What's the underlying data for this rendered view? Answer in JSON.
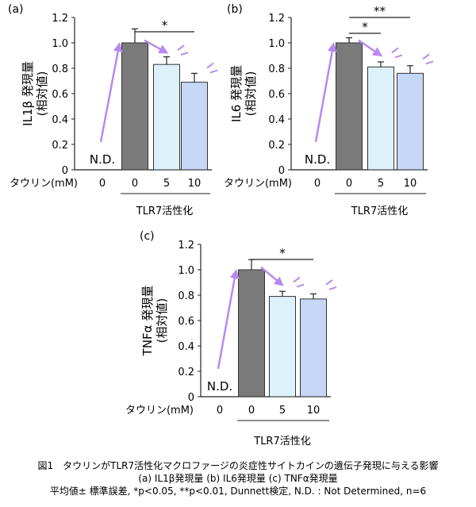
{
  "chart_data": [
    {
      "type": "bar",
      "panel_label": "(a)",
      "ylabel_line1": "IL1β 発現量",
      "ylabel_line2": "(相対値)",
      "categories": [
        "0",
        "0",
        "5",
        "10"
      ],
      "x_label": "タウリン(mM)",
      "group_label": "TLR7活性化",
      "values": [
        null,
        1.0,
        0.83,
        0.69
      ],
      "errors": [
        null,
        0.11,
        0.06,
        0.07
      ],
      "nd_label": "N.D.",
      "ylim": [
        0,
        1.2
      ],
      "yticks": [
        "0",
        "0.2",
        "0.4",
        "0.6",
        "0.8",
        "1.0",
        "1.2"
      ],
      "significance": [
        {
          "from": 1,
          "to": 3,
          "label": "*"
        }
      ]
    },
    {
      "type": "bar",
      "panel_label": "(b)",
      "ylabel_line1": "IL6 発現量",
      "ylabel_line2": "(相対値)",
      "categories": [
        "0",
        "0",
        "5",
        "10"
      ],
      "x_label": "タウリン(mM)",
      "group_label": "TLR7活性化",
      "values": [
        null,
        1.0,
        0.81,
        0.76
      ],
      "errors": [
        null,
        0.04,
        0.04,
        0.06
      ],
      "nd_label": "N.D.",
      "ylim": [
        0,
        1.2
      ],
      "yticks": [
        "0",
        "0.2",
        "0.4",
        "0.6",
        "0.8",
        "1.0",
        "1.2"
      ],
      "significance": [
        {
          "from": 1,
          "to": 2,
          "label": "*"
        },
        {
          "from": 1,
          "to": 3,
          "label": "**"
        }
      ]
    },
    {
      "type": "bar",
      "panel_label": "(c)",
      "ylabel_line1": "TNFα 発現量",
      "ylabel_line2": "(相対値)",
      "categories": [
        "0",
        "0",
        "5",
        "10"
      ],
      "x_label": "タウリン(mM)",
      "group_label": "TLR7活性化",
      "values": [
        null,
        1.0,
        0.79,
        0.77
      ],
      "errors": [
        null,
        0.08,
        0.04,
        0.04
      ],
      "nd_label": "N.D.",
      "ylim": [
        0,
        1.2
      ],
      "yticks": [
        "0",
        "0.2",
        "0.4",
        "0.6",
        "0.8",
        "1.0",
        "1.2"
      ],
      "significance": [
        {
          "from": 1,
          "to": 3,
          "label": "*"
        }
      ]
    }
  ],
  "colors": {
    "bar_control": "#7a7a7a",
    "bar_5": "#ddf1fb",
    "bar_10": "#c6d7f6",
    "arrow": "#b889f0",
    "axis": "#222222"
  },
  "caption": {
    "line1": "図1　タウリンがTLR7活性化マクロファージの炎症性サイトカインの遺伝子発現に与える影響",
    "line2": "(a) IL1β発現量 (b) IL6発現量 (c) TNFα発現量",
    "line3": "平均値± 標準誤差, *p<0.05, **p<0.01, Dunnett検定, N.D. : Not Determined, n=6"
  }
}
